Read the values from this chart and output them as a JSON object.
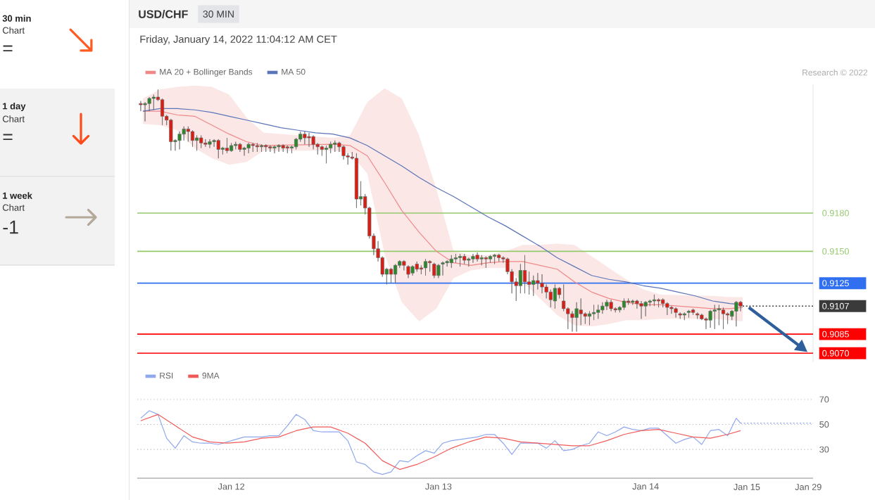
{
  "chart_data": [
    {
      "type": "other",
      "title": "30 min",
      "subtitle": "Chart",
      "annotations": [
        "="
      ]
    },
    {
      "type": "other",
      "title": "1 day",
      "subtitle": "Chart",
      "annotations": [
        "="
      ]
    },
    {
      "type": "other",
      "title": "1 week",
      "subtitle": "Chart",
      "annotations": [
        "-1"
      ]
    },
    {
      "type": "candlestick",
      "title": "USD/CHF",
      "subtitle": "Friday, January 14, 2022 11:04:12 AM CET",
      "annotations": [
        "30 MIN",
        "Research © 2022"
      ],
      "legend": "top left",
      "tick_labels": "y",
      "xlim": [
        "2022-01-11T13:06",
        "2022-01-14T19:24"
      ],
      "ylim": [
        0.9063,
        0.9281
      ],
      "yticks": [
        {
          "value": 0.907,
          "label": "0.9070"
        },
        {
          "value": 0.9085,
          "label": "0.9085"
        },
        {
          "value": 0.9107,
          "label": "0.9107"
        },
        {
          "value": 0.9125,
          "label": "0.9125"
        },
        {
          "value": 0.915,
          "label": "0.9150"
        },
        {
          "value": 0.918,
          "label": "0.9180"
        }
      ],
      "ref_lines": [
        {
          "axis": "y",
          "value": 0.918,
          "color": "#93c96b"
        },
        {
          "axis": "y",
          "value": 0.915,
          "color": "#93c96b"
        },
        {
          "axis": "y",
          "value": 0.9125,
          "color": "#2f6ff0"
        },
        {
          "axis": "y",
          "value": 0.9107,
          "color": "#3a3a3a",
          "line_style": "dotted"
        },
        {
          "axis": "y",
          "value": 0.9085,
          "color": "#ff0000"
        },
        {
          "axis": "y",
          "value": 0.907,
          "color": "#ff0000"
        }
      ],
      "series": [
        {
          "x": [
            "2022-01-11T13:30",
            "2022-01-11T14:00",
            "2022-01-11T14:30",
            "2022-01-11T15:00",
            "2022-01-11T15:30",
            "2022-01-11T16:00",
            "2022-01-11T16:30",
            "2022-01-11T17:00",
            "2022-01-11T17:30",
            "2022-01-11T18:00",
            "2022-01-11T18:30",
            "2022-01-11T19:00",
            "2022-01-11T19:30",
            "2022-01-11T20:00",
            "2022-01-11T20:30",
            "2022-01-11T21:00",
            "2022-01-11T21:30",
            "2022-01-11T22:00",
            "2022-01-11T22:30",
            "2022-01-11T23:00",
            "2022-01-11T23:30",
            "2022-01-12T00:00",
            "2022-01-12T00:30",
            "2022-01-12T01:00",
            "2022-01-12T01:30",
            "2022-01-12T02:00",
            "2022-01-12T02:30",
            "2022-01-12T03:00",
            "2022-01-12T03:30",
            "2022-01-12T04:00",
            "2022-01-12T04:30",
            "2022-01-12T05:00",
            "2022-01-12T05:30",
            "2022-01-12T06:00",
            "2022-01-12T06:30",
            "2022-01-12T07:00",
            "2022-01-12T07:30",
            "2022-01-12T08:00",
            "2022-01-12T08:30",
            "2022-01-12T09:00",
            "2022-01-12T09:30",
            "2022-01-12T10:00",
            "2022-01-12T10:30",
            "2022-01-12T11:00",
            "2022-01-12T11:30",
            "2022-01-12T12:00",
            "2022-01-12T12:30",
            "2022-01-12T13:00",
            "2022-01-12T13:30",
            "2022-01-12T14:00",
            "2022-01-12T14:30",
            "2022-01-12T15:00",
            "2022-01-12T15:30",
            "2022-01-12T16:00",
            "2022-01-12T16:30",
            "2022-01-12T17:00",
            "2022-01-12T17:30",
            "2022-01-12T18:00",
            "2022-01-12T18:30",
            "2022-01-12T19:00",
            "2022-01-12T19:30",
            "2022-01-12T20:00",
            "2022-01-12T20:30",
            "2022-01-12T21:00",
            "2022-01-12T21:30",
            "2022-01-12T22:00",
            "2022-01-12T22:30",
            "2022-01-12T23:00",
            "2022-01-12T23:30",
            "2022-01-13T00:00",
            "2022-01-13T00:30",
            "2022-01-13T01:00",
            "2022-01-13T01:30",
            "2022-01-13T02:00",
            "2022-01-13T02:30",
            "2022-01-13T03:00",
            "2022-01-13T03:30",
            "2022-01-13T04:00",
            "2022-01-13T04:30",
            "2022-01-13T05:00",
            "2022-01-13T05:30",
            "2022-01-13T06:00",
            "2022-01-13T06:30",
            "2022-01-13T07:00",
            "2022-01-13T07:30",
            "2022-01-13T08:00",
            "2022-01-13T08:30",
            "2022-01-13T09:00",
            "2022-01-13T09:30",
            "2022-01-13T10:00",
            "2022-01-13T10:30",
            "2022-01-13T11:00",
            "2022-01-13T11:30",
            "2022-01-13T12:00",
            "2022-01-13T12:30",
            "2022-01-13T13:00",
            "2022-01-13T13:30",
            "2022-01-13T14:00",
            "2022-01-13T14:30",
            "2022-01-13T15:00",
            "2022-01-13T15:30",
            "2022-01-13T16:00",
            "2022-01-13T16:30",
            "2022-01-13T17:00",
            "2022-01-13T17:30",
            "2022-01-13T18:00",
            "2022-01-13T18:30",
            "2022-01-13T19:00",
            "2022-01-13T19:30",
            "2022-01-13T20:00",
            "2022-01-13T20:30",
            "2022-01-13T21:00",
            "2022-01-13T21:30",
            "2022-01-13T22:00",
            "2022-01-13T22:30",
            "2022-01-13T23:00",
            "2022-01-13T23:30",
            "2022-01-14T00:00",
            "2022-01-14T00:30",
            "2022-01-14T01:00",
            "2022-01-14T01:30",
            "2022-01-14T02:00",
            "2022-01-14T02:30",
            "2022-01-14T03:00",
            "2022-01-14T03:30",
            "2022-01-14T04:00",
            "2022-01-14T04:30",
            "2022-01-14T05:00",
            "2022-01-14T05:30",
            "2022-01-14T06:00",
            "2022-01-14T06:30",
            "2022-01-14T07:00",
            "2022-01-14T07:30",
            "2022-01-14T08:00",
            "2022-01-14T08:30",
            "2022-01-14T09:00",
            "2022-01-14T09:30",
            "2022-01-14T10:00",
            "2022-01-14T10:30",
            "2022-01-14T11:00"
          ],
          "ohlc": [
            [
              0.9266,
              0.9268,
              0.926,
              0.9265
            ],
            [
              0.9265,
              0.9267,
              0.9252,
              0.9266
            ],
            [
              0.9266,
              0.9271,
              0.926,
              0.927
            ],
            [
              0.927,
              0.9273,
              0.9261,
              0.9271
            ],
            [
              0.9271,
              0.9277,
              0.9268,
              0.9269
            ],
            [
              0.9269,
              0.927,
              0.9249,
              0.9256
            ],
            [
              0.9256,
              0.9257,
              0.9249,
              0.9253
            ],
            [
              0.9253,
              0.9254,
              0.9229,
              0.9236
            ],
            [
              0.9236,
              0.9238,
              0.9229,
              0.9237
            ],
            [
              0.9237,
              0.9244,
              0.923,
              0.9242
            ],
            [
              0.9242,
              0.9248,
              0.9237,
              0.9246
            ],
            [
              0.9246,
              0.9248,
              0.9236,
              0.9244
            ],
            [
              0.9244,
              0.9245,
              0.9232,
              0.9237
            ],
            [
              0.9237,
              0.9241,
              0.9229,
              0.9239
            ],
            [
              0.9239,
              0.9241,
              0.9231,
              0.9235
            ],
            [
              0.9235,
              0.9238,
              0.9232,
              0.9234
            ],
            [
              0.9234,
              0.9238,
              0.9231,
              0.9236
            ],
            [
              0.9236,
              0.9238,
              0.9232,
              0.9237
            ],
            [
              0.9237,
              0.9238,
              0.9223,
              0.923
            ],
            [
              0.923,
              0.9232,
              0.9226,
              0.9231
            ],
            [
              0.9231,
              0.9239,
              0.9227,
              0.9229
            ],
            [
              0.9229,
              0.9235,
              0.9228,
              0.9233
            ],
            [
              0.9233,
              0.9236,
              0.923,
              0.9234
            ],
            [
              0.9234,
              0.9235,
              0.9228,
              0.923
            ],
            [
              0.923,
              0.9232,
              0.9225,
              0.9231
            ],
            [
              0.9231,
              0.9235,
              0.9227,
              0.9234
            ],
            [
              0.9234,
              0.9235,
              0.9228,
              0.9233
            ],
            [
              0.9233,
              0.9235,
              0.9228,
              0.9232
            ],
            [
              0.9232,
              0.9234,
              0.9228,
              0.9233
            ],
            [
              0.9233,
              0.9234,
              0.9228,
              0.9232
            ],
            [
              0.9232,
              0.9233,
              0.9228,
              0.9231
            ],
            [
              0.9231,
              0.9233,
              0.9227,
              0.9232
            ],
            [
              0.9232,
              0.9234,
              0.9228,
              0.9233
            ],
            [
              0.9233,
              0.9234,
              0.9228,
              0.9231
            ],
            [
              0.9232,
              0.9233,
              0.9227,
              0.9231
            ],
            [
              0.9231,
              0.9233,
              0.9227,
              0.9232
            ],
            [
              0.9232,
              0.9239,
              0.923,
              0.9238
            ],
            [
              0.9238,
              0.9244,
              0.9236,
              0.9242
            ],
            [
              0.9242,
              0.9244,
              0.9234,
              0.9239
            ],
            [
              0.924,
              0.9243,
              0.9232,
              0.9239
            ],
            [
              0.924,
              0.9241,
              0.923,
              0.9234
            ],
            [
              0.9234,
              0.9235,
              0.9226,
              0.9232
            ],
            [
              0.9232,
              0.9233,
              0.9225,
              0.923
            ],
            [
              0.923,
              0.9233,
              0.9219,
              0.9231
            ],
            [
              0.9231,
              0.9236,
              0.9227,
              0.9234
            ],
            [
              0.9234,
              0.9237,
              0.9228,
              0.9235
            ],
            [
              0.9235,
              0.9236,
              0.9228,
              0.9232
            ],
            [
              0.9232,
              0.9233,
              0.9222,
              0.9225
            ],
            [
              0.9225,
              0.9227,
              0.9218,
              0.9224
            ],
            [
              0.9224,
              0.9228,
              0.9222,
              0.9223
            ],
            [
              0.9223,
              0.9227,
              0.9184,
              0.9191
            ],
            [
              0.9191,
              0.9205,
              0.9186,
              0.9193
            ],
            [
              0.9193,
              0.9195,
              0.9179,
              0.9184
            ],
            [
              0.9184,
              0.9185,
              0.916,
              0.9162
            ],
            [
              0.9162,
              0.9164,
              0.9147,
              0.9152
            ],
            [
              0.9152,
              0.9158,
              0.9142,
              0.9145
            ],
            [
              0.9145,
              0.9146,
              0.913,
              0.9132
            ],
            [
              0.9132,
              0.9137,
              0.9124,
              0.9136
            ],
            [
              0.9136,
              0.9137,
              0.9125,
              0.9132
            ],
            [
              0.9132,
              0.914,
              0.9125,
              0.9139
            ],
            [
              0.9139,
              0.9143,
              0.9137,
              0.9142
            ],
            [
              0.9142,
              0.9143,
              0.9135,
              0.9139
            ],
            [
              0.9138,
              0.9139,
              0.9129,
              0.9132
            ],
            [
              0.9133,
              0.9139,
              0.9131,
              0.9138
            ],
            [
              0.914,
              0.9142,
              0.9134,
              0.9136
            ],
            [
              0.9137,
              0.9139,
              0.9132,
              0.9136
            ],
            [
              0.9137,
              0.9144,
              0.9131,
              0.9142
            ],
            [
              0.9142,
              0.9143,
              0.9134,
              0.9141
            ],
            [
              0.914,
              0.9141,
              0.9129,
              0.9131
            ],
            [
              0.9131,
              0.914,
              0.9129,
              0.9139
            ],
            [
              0.914,
              0.9142,
              0.9131,
              0.9141
            ],
            [
              0.9141,
              0.9143,
              0.9138,
              0.9142
            ],
            [
              0.9141,
              0.9147,
              0.9137,
              0.9144
            ],
            [
              0.9144,
              0.9148,
              0.9141,
              0.9145
            ],
            [
              0.9145,
              0.9148,
              0.9138,
              0.9146
            ],
            [
              0.9146,
              0.9148,
              0.914,
              0.9143
            ],
            [
              0.9143,
              0.9145,
              0.9138,
              0.9144
            ],
            [
              0.9144,
              0.9148,
              0.9141,
              0.9146
            ],
            [
              0.9147,
              0.9149,
              0.9142,
              0.9144
            ],
            [
              0.9144,
              0.9147,
              0.9139,
              0.9145
            ],
            [
              0.9145,
              0.9146,
              0.9137,
              0.9144
            ],
            [
              0.9144,
              0.9147,
              0.9141,
              0.9146
            ],
            [
              0.9146,
              0.9148,
              0.914,
              0.9147
            ],
            [
              0.9147,
              0.9148,
              0.9142,
              0.9145
            ],
            [
              0.9145,
              0.9146,
              0.9141,
              0.9144
            ],
            [
              0.9144,
              0.9145,
              0.9132,
              0.9134
            ],
            [
              0.9134,
              0.9136,
              0.9117,
              0.9126
            ],
            [
              0.9126,
              0.9129,
              0.9111,
              0.9123
            ],
            [
              0.9123,
              0.914,
              0.9117,
              0.9135
            ],
            [
              0.9135,
              0.9147,
              0.9117,
              0.9126
            ],
            [
              0.9126,
              0.9134,
              0.9116,
              0.9124
            ],
            [
              0.9124,
              0.9131,
              0.9115,
              0.9127
            ],
            [
              0.9127,
              0.9133,
              0.912,
              0.9125
            ],
            [
              0.9125,
              0.9132,
              0.9117,
              0.9122
            ],
            [
              0.9122,
              0.9124,
              0.9113,
              0.9118
            ],
            [
              0.9118,
              0.912,
              0.9106,
              0.9112
            ],
            [
              0.9111,
              0.9124,
              0.9105,
              0.9121
            ],
            [
              0.9121,
              0.9122,
              0.9113,
              0.9116
            ],
            [
              0.9111,
              0.9124,
              0.9103,
              0.9105
            ],
            [
              0.9105,
              0.9106,
              0.9089,
              0.9101
            ],
            [
              0.9101,
              0.9103,
              0.9087,
              0.9098
            ],
            [
              0.9098,
              0.911,
              0.9087,
              0.9105
            ],
            [
              0.9104,
              0.9113,
              0.9092,
              0.9101
            ],
            [
              0.9101,
              0.9102,
              0.9093,
              0.9099
            ],
            [
              0.9099,
              0.9103,
              0.9092,
              0.9101
            ],
            [
              0.9101,
              0.9108,
              0.9096,
              0.9102
            ],
            [
              0.9102,
              0.9108,
              0.9097,
              0.9104
            ],
            [
              0.9104,
              0.911,
              0.9101,
              0.9107
            ],
            [
              0.9107,
              0.9112,
              0.9104,
              0.911
            ],
            [
              0.911,
              0.9112,
              0.9103,
              0.9105
            ],
            [
              0.9105,
              0.9106,
              0.9102,
              0.9104
            ],
            [
              0.9104,
              0.9107,
              0.9102,
              0.9106
            ],
            [
              0.9106,
              0.9113,
              0.9104,
              0.9111
            ],
            [
              0.9111,
              0.9113,
              0.9108,
              0.911
            ],
            [
              0.911,
              0.9112,
              0.9108,
              0.9111
            ],
            [
              0.9111,
              0.9112,
              0.9105,
              0.9109
            ],
            [
              0.9109,
              0.9111,
              0.9097,
              0.9107
            ],
            [
              0.9107,
              0.9111,
              0.9099,
              0.911
            ],
            [
              0.911,
              0.9112,
              0.9107,
              0.9111
            ],
            [
              0.9111,
              0.9116,
              0.9107,
              0.9112
            ],
            [
              0.9112,
              0.9113,
              0.9106,
              0.9111
            ],
            [
              0.9112,
              0.9113,
              0.9106,
              0.9109
            ],
            [
              0.9109,
              0.911,
              0.91,
              0.9106
            ],
            [
              0.9106,
              0.9107,
              0.9101,
              0.9105
            ],
            [
              0.9105,
              0.9106,
              0.9098,
              0.9102
            ],
            [
              0.9101,
              0.9102,
              0.9097,
              0.91
            ],
            [
              0.91,
              0.9102,
              0.9096,
              0.9101
            ],
            [
              0.9102,
              0.9104,
              0.9098,
              0.9103
            ],
            [
              0.9104,
              0.9105,
              0.91,
              0.9102
            ],
            [
              0.9101,
              0.9102,
              0.9097,
              0.91
            ],
            [
              0.91,
              0.9101,
              0.9096,
              0.9097
            ],
            [
              0.9097,
              0.9098,
              0.9089,
              0.9096
            ],
            [
              0.9096,
              0.9104,
              0.909,
              0.9103
            ],
            [
              0.9103,
              0.9108,
              0.9089,
              0.9104
            ],
            [
              0.9104,
              0.9108,
              0.9092,
              0.9105
            ],
            [
              0.9104,
              0.9106,
              0.9089,
              0.9101
            ],
            [
              0.9101,
              0.9102,
              0.9093,
              0.91
            ],
            [
              0.9099,
              0.9104,
              0.9096,
              0.9103
            ],
            [
              0.9103,
              0.9111,
              0.9091,
              0.911
            ],
            [
              0.911,
              0.9111,
              0.9103,
              0.9107
            ]
          ],
          "colors": [
            "#e01b12",
            "#2a8a2a",
            "#2a8a2a",
            "#2a8a2a",
            "#e01b12",
            "#e01b12",
            "#e01b12",
            "#e01b12",
            "#2a8a2a",
            "#2a8a2a",
            "#2a8a2a",
            "#e01b12",
            "#e01b12",
            "#2a8a2a",
            "#e01b12",
            "#e01b12",
            "#2a8a2a",
            "#2a8a2a",
            "#e01b12",
            "#2a8a2a",
            "#e01b12",
            "#2a8a2a",
            "#2a8a2a",
            "#e01b12",
            "#2a8a2a",
            "#2a8a2a",
            "#e01b12",
            "#e01b12",
            "#2a8a2a",
            "#e01b12",
            "#e01b12",
            "#2a8a2a",
            "#2a8a2a",
            "#e01b12",
            "#e01b12",
            "#2a8a2a",
            "#2a8a2a",
            "#2a8a2a",
            "#e01b12",
            "#e01b12",
            "#e01b12",
            "#e01b12",
            "#e01b12",
            "#2a8a2a",
            "#2a8a2a",
            "#2a8a2a",
            "#e01b12",
            "#e01b12",
            "#e01b12",
            "#e01b12",
            "#e01b12",
            "#2a8a2a",
            "#e01b12",
            "#e01b12",
            "#e01b12",
            "#e01b12",
            "#e01b12",
            "#2a8a2a",
            "#e01b12",
            "#2a8a2a",
            "#2a8a2a",
            "#e01b12",
            "#e01b12",
            "#2a8a2a",
            "#e01b12",
            "#e01b12",
            "#2a8a2a",
            "#e01b12",
            "#e01b12",
            "#2a8a2a",
            "#2a8a2a",
            "#2a8a2a",
            "#2a8a2a",
            "#2a8a2a",
            "#2a8a2a",
            "#e01b12",
            "#2a8a2a",
            "#2a8a2a",
            "#e01b12",
            "#2a8a2a",
            "#e01b12",
            "#2a8a2a",
            "#2a8a2a",
            "#e01b12",
            "#e01b12",
            "#e01b12",
            "#e01b12",
            "#e01b12",
            "#2a8a2a",
            "#e01b12",
            "#e01b12",
            "#2a8a2a",
            "#e01b12",
            "#e01b12",
            "#e01b12",
            "#e01b12",
            "#2a8a2a",
            "#e01b12",
            "#e01b12",
            "#e01b12",
            "#e01b12",
            "#2a8a2a",
            "#e01b12",
            "#e01b12",
            "#2a8a2a",
            "#2a8a2a",
            "#2a8a2a",
            "#2a8a2a",
            "#2a8a2a",
            "#e01b12",
            "#e01b12",
            "#2a8a2a",
            "#2a8a2a",
            "#e01b12",
            "#2a8a2a",
            "#e01b12",
            "#e01b12",
            "#2a8a2a",
            "#2a8a2a",
            "#2a8a2a",
            "#e01b12",
            "#e01b12",
            "#e01b12",
            "#e01b12",
            "#e01b12",
            "#e01b12",
            "#2a8a2a",
            "#2a8a2a",
            "#e01b12",
            "#e01b12",
            "#e01b12",
            "#e01b12",
            "#2a8a2a",
            "#2a8a2a",
            "#2a8a2a",
            "#e01b12",
            "#e01b12",
            "#2a8a2a",
            "#2a8a2a",
            "#e01b12"
          ]
        },
        {
          "type": "line",
          "name": "MA 20 + Bollinger Bands",
          "color": "#f08888",
          "x": [
            "2022-01-11T13:45",
            "2022-01-11T15:45",
            "2022-01-11T17:45",
            "2022-01-11T19:45",
            "2022-01-11T21:45",
            "2022-01-11T23:45",
            "2022-01-12T01:45",
            "2022-01-12T03:45",
            "2022-01-12T11:45",
            "2022-01-12T13:45",
            "2022-01-12T15:45",
            "2022-01-12T17:45",
            "2022-01-12T19:45",
            "2022-01-12T21:45",
            "2022-01-12T23:45",
            "2022-01-13T01:45",
            "2022-01-13T03:45",
            "2022-01-13T05:45",
            "2022-01-13T07:45",
            "2022-01-13T09:45",
            "2022-01-13T11:45",
            "2022-01-13T13:45",
            "2022-01-13T15:45",
            "2022-01-13T17:45",
            "2022-01-13T19:45",
            "2022-01-13T21:45",
            "2022-01-13T23:45",
            "2022-01-14T01:45",
            "2022-01-14T07:45",
            "2022-01-14T09:45",
            "2022-01-14T11:15"
          ],
          "values": [
            0.926,
            0.926,
            0.9257,
            0.9256,
            0.9249,
            0.9242,
            0.9236,
            0.9233,
            0.9234,
            0.9233,
            0.9225,
            0.9204,
            0.9182,
            0.9165,
            0.915,
            0.9141,
            0.9139,
            0.9141,
            0.9142,
            0.9142,
            0.9139,
            0.9136,
            0.9126,
            0.9118,
            0.9113,
            0.911,
            0.9108,
            0.9108,
            0.9105,
            0.9105,
            0.9106
          ],
          "lower": [
            0.925,
            0.9249,
            0.9245,
            0.9231,
            0.9223,
            0.9218,
            0.922,
            0.9229,
            0.9229,
            0.9227,
            0.9211,
            0.9148,
            0.911,
            0.9095,
            0.9105,
            0.9129,
            0.9135,
            0.9137,
            0.9137,
            0.9126,
            0.9113,
            0.91,
            0.9092,
            0.9091,
            0.9093,
            0.9096,
            0.9096,
            0.9097,
            0.9097,
            0.9096,
            0.9095
          ],
          "upper": [
            0.927,
            0.9277,
            0.9279,
            0.928,
            0.9279,
            0.9273,
            0.9255,
            0.9243,
            0.9239,
            0.9241,
            0.9267,
            0.9278,
            0.927,
            0.9241,
            0.9199,
            0.915,
            0.9147,
            0.9147,
            0.915,
            0.9155,
            0.9155,
            0.9156,
            0.9155,
            0.9146,
            0.9137,
            0.9128,
            0.912,
            0.9116,
            0.9115,
            0.9114,
            0.9114
          ]
        },
        {
          "type": "line",
          "name": "MA 50",
          "color": "#5a74b8",
          "x": [
            "2022-01-11T13:45",
            "2022-01-11T15:45",
            "2022-01-11T17:45",
            "2022-01-11T19:45",
            "2022-01-11T21:45",
            "2022-01-11T23:45",
            "2022-01-12T01:45",
            "2022-01-12T03:45",
            "2022-01-12T05:45",
            "2022-01-12T07:45",
            "2022-01-12T09:45",
            "2022-01-12T11:45",
            "2022-01-12T13:45",
            "2022-01-12T15:45",
            "2022-01-12T17:45",
            "2022-01-12T19:45",
            "2022-01-12T21:45",
            "2022-01-12T23:45",
            "2022-01-13T01:45",
            "2022-01-13T03:45",
            "2022-01-13T05:45",
            "2022-01-13T07:45",
            "2022-01-13T09:45",
            "2022-01-13T11:45",
            "2022-01-13T13:45",
            "2022-01-13T15:45",
            "2022-01-13T17:45",
            "2022-01-13T19:45",
            "2022-01-13T21:45",
            "2022-01-13T23:45",
            "2022-01-14T01:45",
            "2022-01-14T03:45",
            "2022-01-14T05:45",
            "2022-01-14T07:45",
            "2022-01-14T09:45",
            "2022-01-14T11:15"
          ],
          "values": [
            0.926,
            0.9262,
            0.9262,
            0.9261,
            0.9259,
            0.9256,
            0.9253,
            0.925,
            0.9247,
            0.9245,
            0.9243,
            0.9242,
            0.9239,
            0.9233,
            0.9225,
            0.9217,
            0.9208,
            0.92,
            0.9193,
            0.9185,
            0.9177,
            0.917,
            0.9162,
            0.9154,
            0.9145,
            0.9138,
            0.9131,
            0.9128,
            0.9126,
            0.9123,
            0.9121,
            0.9118,
            0.9115,
            0.9111,
            0.9109,
            0.9108
          ]
        }
      ]
    },
    {
      "type": "line",
      "legend": "top left",
      "xlim": [
        "2022-01-11T13:06",
        "2022-01-14T19:24"
      ],
      "xticks": [
        {
          "value": "2022-01-12",
          "label": "Jan 12"
        },
        {
          "value": "2022-01-13",
          "label": "Jan 13"
        },
        {
          "value": "2022-01-14",
          "label": "Jan 14"
        }
      ],
      "annotations": [
        "Jan 15",
        "Jan 29"
      ],
      "ylim": [
        7,
        70
      ],
      "yticks": [
        30,
        50,
        70
      ],
      "grid": "y",
      "ref_lines": [
        {
          "axis": "y",
          "value": 51,
          "color": "#9db2f0",
          "line_style": "dotted"
        }
      ],
      "series": [
        {
          "name": "RSI",
          "color": "#8fa8ee",
          "x": [
            "2022-01-11T13:30",
            "2022-01-11T14:30",
            "2022-01-11T15:30",
            "2022-01-11T16:30",
            "2022-01-11T17:30",
            "2022-01-11T18:30",
            "2022-01-11T19:30",
            "2022-01-11T20:30",
            "2022-01-11T21:30",
            "2022-01-11T22:30",
            "2022-01-11T23:30",
            "2022-01-12T00:30",
            "2022-01-12T01:30",
            "2022-01-12T02:30",
            "2022-01-12T03:30",
            "2022-01-12T04:30",
            "2022-01-12T05:30",
            "2022-01-12T06:30",
            "2022-01-12T07:30",
            "2022-01-12T08:30",
            "2022-01-12T09:30",
            "2022-01-12T10:30",
            "2022-01-12T11:30",
            "2022-01-12T12:30",
            "2022-01-12T13:30",
            "2022-01-12T14:30",
            "2022-01-12T15:30",
            "2022-01-12T16:30",
            "2022-01-12T17:30",
            "2022-01-12T18:30",
            "2022-01-12T19:30",
            "2022-01-12T20:30",
            "2022-01-12T21:30",
            "2022-01-12T22:30",
            "2022-01-12T23:30",
            "2022-01-13T00:30",
            "2022-01-13T01:30",
            "2022-01-13T02:30",
            "2022-01-13T03:30",
            "2022-01-13T04:30",
            "2022-01-13T05:30",
            "2022-01-13T06:30",
            "2022-01-13T07:30",
            "2022-01-13T08:30",
            "2022-01-13T09:30",
            "2022-01-13T10:30",
            "2022-01-13T11:30",
            "2022-01-13T12:30",
            "2022-01-13T13:30",
            "2022-01-13T14:30",
            "2022-01-13T15:30",
            "2022-01-13T16:30",
            "2022-01-13T17:30",
            "2022-01-13T18:30",
            "2022-01-13T19:30",
            "2022-01-13T20:30",
            "2022-01-13T21:30",
            "2022-01-13T22:30",
            "2022-01-13T23:30",
            "2022-01-14T00:30",
            "2022-01-14T01:30",
            "2022-01-14T02:30",
            "2022-01-14T03:30",
            "2022-01-14T04:30",
            "2022-01-14T05:30",
            "2022-01-14T06:30",
            "2022-01-14T07:30",
            "2022-01-14T08:30",
            "2022-01-14T09:30",
            "2022-01-14T10:30",
            "2022-01-14T11:00"
          ],
          "values": [
            55,
            61,
            58,
            39,
            31,
            41,
            36,
            35,
            35,
            34,
            36,
            38,
            40,
            40,
            40,
            41,
            41,
            49,
            58,
            54,
            45,
            44,
            44,
            44,
            37,
            20,
            18,
            12,
            10,
            12,
            21,
            20,
            25,
            29,
            27,
            35,
            37,
            38,
            39,
            40,
            42,
            42,
            35,
            26,
            35,
            35,
            35,
            31,
            37,
            29,
            30,
            33,
            35,
            44,
            41,
            44,
            48,
            46,
            45,
            47,
            47,
            41,
            35,
            38,
            40,
            34,
            45,
            46,
            41,
            55,
            51
          ]
        },
        {
          "name": "9MA",
          "color": "#f25a5a",
          "x": [
            "2022-01-11T13:30",
            "2022-01-11T15:30",
            "2022-01-11T17:30",
            "2022-01-11T19:30",
            "2022-01-11T21:30",
            "2022-01-11T23:30",
            "2022-01-12T01:30",
            "2022-01-12T03:30",
            "2022-01-12T05:30",
            "2022-01-12T07:30",
            "2022-01-12T09:30",
            "2022-01-12T11:30",
            "2022-01-12T13:30",
            "2022-01-12T15:30",
            "2022-01-12T17:30",
            "2022-01-12T19:30",
            "2022-01-12T21:30",
            "2022-01-12T23:30",
            "2022-01-13T01:30",
            "2022-01-13T03:30",
            "2022-01-13T05:30",
            "2022-01-13T07:30",
            "2022-01-13T09:30",
            "2022-01-13T11:30",
            "2022-01-13T13:30",
            "2022-01-13T15:30",
            "2022-01-13T17:30",
            "2022-01-13T19:30",
            "2022-01-13T21:30",
            "2022-01-13T23:30",
            "2022-01-14T01:30",
            "2022-01-14T03:30",
            "2022-01-14T05:30",
            "2022-01-14T07:30",
            "2022-01-14T09:30",
            "2022-01-14T11:00"
          ],
          "values": [
            53,
            58,
            49,
            40,
            36,
            35,
            36,
            39,
            40,
            45,
            48,
            48,
            43,
            35,
            21,
            14,
            18,
            24,
            31,
            36,
            40,
            39,
            36,
            35,
            34,
            33,
            33,
            37,
            42,
            45,
            46,
            43,
            40,
            39,
            42,
            45
          ]
        }
      ]
    }
  ]
}
